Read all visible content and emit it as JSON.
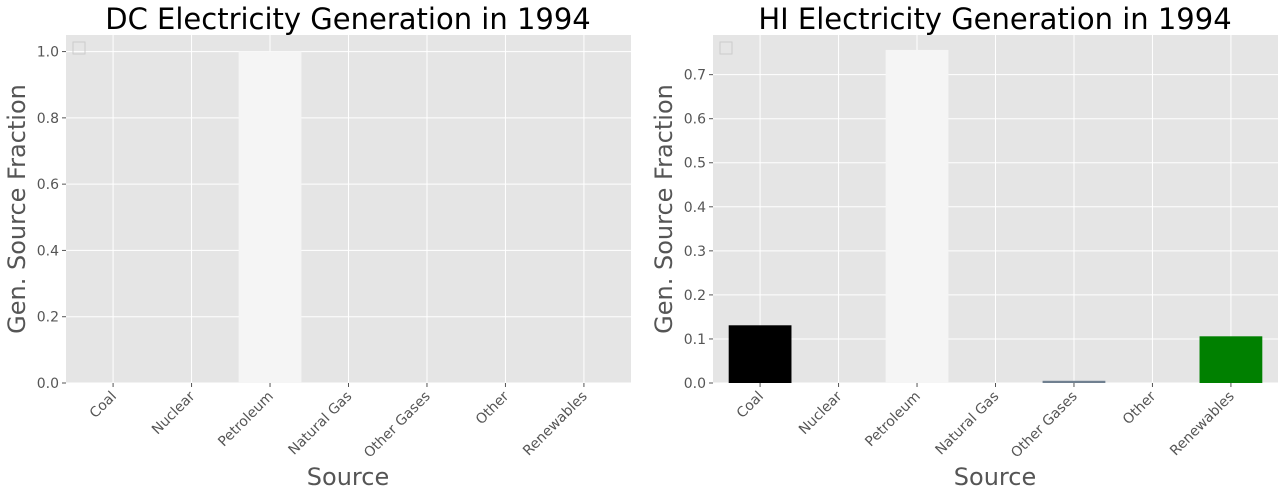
{
  "chart_data": [
    {
      "type": "bar",
      "title": "DC Electricity Generation in 1994",
      "xlabel": "Source",
      "ylabel": "Gen. Source Fraction",
      "categories": [
        "Coal",
        "Nuclear",
        "Petroleum",
        "Natural Gas",
        "Other Gases",
        "Other",
        "Renewables"
      ],
      "values": [
        0,
        0,
        1.0,
        0,
        0,
        0,
        0
      ],
      "colors": [
        "#000000",
        "#ffa500",
        "#f5f5f5",
        "#1e90ff",
        "#708090",
        "#8b4513",
        "#008000"
      ],
      "ylim": [
        0,
        1.05
      ],
      "yticks": [
        "0.0",
        "0.2",
        "0.4",
        "0.6",
        "0.8",
        "1.0"
      ],
      "grid": true,
      "legend": "top-left (empty)"
    },
    {
      "type": "bar",
      "title": "HI Electricity Generation in 1994",
      "xlabel": "Source",
      "ylabel": "Gen. Source Fraction",
      "categories": [
        "Coal",
        "Nuclear",
        "Petroleum",
        "Natural Gas",
        "Other Gases",
        "Other",
        "Renewables"
      ],
      "values": [
        0.131,
        0,
        0.756,
        0,
        0.005,
        0,
        0.106
      ],
      "colors": [
        "#000000",
        "#ffa500",
        "#f5f5f5",
        "#1e90ff",
        "#708090",
        "#8b4513",
        "#008000"
      ],
      "ylim": [
        0,
        0.79
      ],
      "yticks": [
        "0.0",
        "0.1",
        "0.2",
        "0.3",
        "0.4",
        "0.5",
        "0.6",
        "0.7"
      ],
      "grid": true,
      "legend": "top-left (empty)"
    }
  ],
  "style": {
    "plot_background": "#e5e5e5",
    "grid_color": "#ffffff",
    "text_color": "#555555"
  }
}
